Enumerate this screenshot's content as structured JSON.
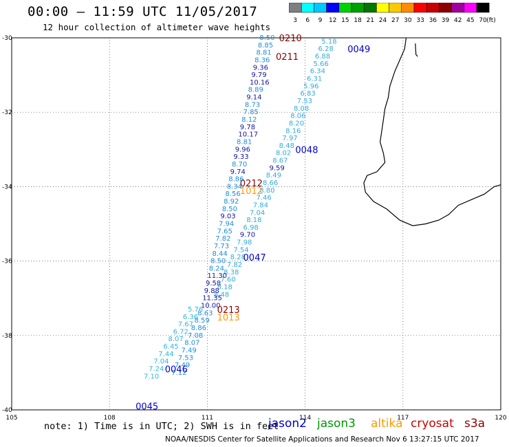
{
  "header": {
    "title": "00:00 – 11:59 UTC 11/05/2017",
    "subtitle": "12 hour collection of altimeter wave heights"
  },
  "color_scale": {
    "bins": [
      {
        "label": "3",
        "color": "#7f7f7f"
      },
      {
        "label": "6",
        "color": "#00ffff"
      },
      {
        "label": "9",
        "color": "#00c8ff"
      },
      {
        "label": "12",
        "color": "#0000ff"
      },
      {
        "label": "15",
        "color": "#00d200"
      },
      {
        "label": "18",
        "color": "#00a000"
      },
      {
        "label": "21",
        "color": "#007800"
      },
      {
        "label": "24",
        "color": "#ffff00"
      },
      {
        "label": "27",
        "color": "#ffc800"
      },
      {
        "label": "30",
        "color": "#ff8c00"
      },
      {
        "label": "33",
        "color": "#ff0000"
      },
      {
        "label": "36",
        "color": "#c80000"
      },
      {
        "label": "39",
        "color": "#8c0000"
      },
      {
        "label": "42",
        "color": "#a000a0"
      },
      {
        "label": "45",
        "color": "#ff00ff"
      },
      {
        "label": "70",
        "color": "#000000"
      }
    ],
    "unit": "(ft)"
  },
  "axes": {
    "lat_labels": [
      "-30",
      "-32",
      "-34",
      "-36",
      "-38",
      "-40"
    ],
    "lon_labels": [
      "105",
      "108",
      "111",
      "114",
      "117",
      "120"
    ]
  },
  "passes": [
    {
      "label": "0210",
      "color": "#8b0000",
      "lon": 113.2,
      "lat": -30.0
    },
    {
      "label": "0211",
      "color": "#8b0000",
      "lon": 113.1,
      "lat": -30.5
    },
    {
      "label": "0049",
      "color": "#0000c8",
      "lon": 115.3,
      "lat": -30.3
    },
    {
      "label": "0048",
      "color": "#0000c8",
      "lon": 113.7,
      "lat": -33.0
    },
    {
      "label": "0212",
      "color": "#8b0000",
      "lon": 112.0,
      "lat": -33.9
    },
    {
      "label": "1012",
      "color": "#ff9900",
      "lon": 112.0,
      "lat": -34.1
    },
    {
      "label": "0047",
      "color": "#0000c8",
      "lon": 112.1,
      "lat": -35.9
    },
    {
      "label": "0213",
      "color": "#8b0000",
      "lon": 111.3,
      "lat": -37.3
    },
    {
      "label": "1013",
      "color": "#ff9900",
      "lon": 111.3,
      "lat": -37.5
    },
    {
      "label": "0046",
      "color": "#0000c8",
      "lon": 109.7,
      "lat": -38.9
    },
    {
      "label": "0045",
      "color": "#0000c8",
      "lon": 108.8,
      "lat": -39.9
    }
  ],
  "tracks": [
    {
      "name": "track-0049",
      "color": "#32aadc",
      "points": [
        {
          "lon": 114.5,
          "lat": -30.1,
          "v": "5.18"
        },
        {
          "lon": 114.4,
          "lat": -30.3,
          "v": "6.28"
        },
        {
          "lon": 114.3,
          "lat": -30.5,
          "v": "6.88"
        },
        {
          "lon": 114.25,
          "lat": -30.7,
          "v": "5.66"
        },
        {
          "lon": 114.15,
          "lat": -30.9,
          "v": "6.34"
        },
        {
          "lon": 114.05,
          "lat": -31.1,
          "v": "6.31"
        },
        {
          "lon": 113.95,
          "lat": -31.3,
          "v": "5.96"
        },
        {
          "lon": 113.85,
          "lat": -31.5,
          "v": "6.83"
        },
        {
          "lon": 113.75,
          "lat": -31.7,
          "v": "7.53"
        },
        {
          "lon": 113.65,
          "lat": -31.9,
          "v": "8.08"
        },
        {
          "lon": 113.55,
          "lat": -32.1,
          "v": "8.06"
        },
        {
          "lon": 113.5,
          "lat": -32.3,
          "v": "8.20"
        },
        {
          "lon": 113.4,
          "lat": -32.5,
          "v": "8.16"
        },
        {
          "lon": 113.3,
          "lat": -32.7,
          "v": "7.97"
        },
        {
          "lon": 113.2,
          "lat": -32.9,
          "v": "8.48"
        },
        {
          "lon": 113.1,
          "lat": -33.1,
          "v": "8.02"
        },
        {
          "lon": 113.0,
          "lat": -33.3,
          "v": "8.67"
        },
        {
          "lon": 112.9,
          "lat": -33.5,
          "v": "9.59"
        },
        {
          "lon": 112.8,
          "lat": -33.7,
          "v": "8.49"
        },
        {
          "lon": 112.7,
          "lat": -33.9,
          "v": "8.66"
        },
        {
          "lon": 112.6,
          "lat": -34.1,
          "v": "8.80"
        },
        {
          "lon": 112.5,
          "lat": -34.3,
          "v": "7.46"
        },
        {
          "lon": 112.4,
          "lat": -34.5,
          "v": "7.84"
        },
        {
          "lon": 112.3,
          "lat": -34.7,
          "v": "7.04"
        },
        {
          "lon": 112.2,
          "lat": -34.9,
          "v": "8.18"
        },
        {
          "lon": 112.1,
          "lat": -35.1,
          "v": "6.98"
        },
        {
          "lon": 112.0,
          "lat": -35.3,
          "v": "9.70"
        },
        {
          "lon": 111.9,
          "lat": -35.5,
          "v": "7.98"
        },
        {
          "lon": 111.8,
          "lat": -35.7,
          "v": "7.54"
        },
        {
          "lon": 111.7,
          "lat": -35.9,
          "v": "8.28"
        },
        {
          "lon": 111.6,
          "lat": -36.1,
          "v": "7.82"
        },
        {
          "lon": 111.5,
          "lat": -36.3,
          "v": "8.38"
        },
        {
          "lon": 111.4,
          "lat": -36.5,
          "v": "7.60"
        },
        {
          "lon": 111.3,
          "lat": -36.7,
          "v": "8.18"
        },
        {
          "lon": 111.2,
          "lat": -36.9,
          "v": "8.48"
        }
      ]
    },
    {
      "name": "track-0211",
      "color": "#1e8cdc",
      "points": [
        {
          "lon": 112.6,
          "lat": -30.0,
          "v": "8.50"
        },
        {
          "lon": 112.55,
          "lat": -30.2,
          "v": "8.85"
        },
        {
          "lon": 112.5,
          "lat": -30.4,
          "v": "8.81"
        },
        {
          "lon": 112.45,
          "lat": -30.6,
          "v": "8.36"
        },
        {
          "lon": 112.4,
          "lat": -30.8,
          "v": "9.36"
        },
        {
          "lon": 112.35,
          "lat": -31.0,
          "v": "9.79"
        },
        {
          "lon": 112.3,
          "lat": -31.2,
          "v": "10.16"
        },
        {
          "lon": 112.25,
          "lat": -31.4,
          "v": "8.89"
        },
        {
          "lon": 112.2,
          "lat": -31.6,
          "v": "9.14"
        },
        {
          "lon": 112.15,
          "lat": -31.8,
          "v": "8.73"
        },
        {
          "lon": 112.1,
          "lat": -32.0,
          "v": "7.85"
        },
        {
          "lon": 112.05,
          "lat": -32.2,
          "v": "8.12"
        },
        {
          "lon": 112.0,
          "lat": -32.4,
          "v": "9.78"
        },
        {
          "lon": 111.95,
          "lat": -32.6,
          "v": "10.17"
        },
        {
          "lon": 111.9,
          "lat": -32.8,
          "v": "8.81"
        },
        {
          "lon": 111.85,
          "lat": -33.0,
          "v": "9.96"
        },
        {
          "lon": 111.8,
          "lat": -33.2,
          "v": "9.33"
        },
        {
          "lon": 111.75,
          "lat": -33.4,
          "v": "8.70"
        },
        {
          "lon": 111.7,
          "lat": -33.6,
          "v": "9.74"
        },
        {
          "lon": 111.65,
          "lat": -33.8,
          "v": "8.86"
        },
        {
          "lon": 111.6,
          "lat": -34.0,
          "v": "8.34"
        },
        {
          "lon": 111.55,
          "lat": -34.2,
          "v": "8.56"
        },
        {
          "lon": 111.5,
          "lat": -34.4,
          "v": "8.92"
        },
        {
          "lon": 111.45,
          "lat": -34.6,
          "v": "8.50"
        },
        {
          "lon": 111.4,
          "lat": -34.8,
          "v": "9.03"
        },
        {
          "lon": 111.35,
          "lat": -35.0,
          "v": "7.94"
        },
        {
          "lon": 111.3,
          "lat": -35.2,
          "v": "7.65"
        },
        {
          "lon": 111.25,
          "lat": -35.4,
          "v": "7.82"
        },
        {
          "lon": 111.2,
          "lat": -35.6,
          "v": "7.73"
        },
        {
          "lon": 111.15,
          "lat": -35.8,
          "v": "8.44"
        },
        {
          "lon": 111.1,
          "lat": -36.0,
          "v": "8.50"
        },
        {
          "lon": 111.05,
          "lat": -36.2,
          "v": "8.24"
        },
        {
          "lon": 111.0,
          "lat": -36.4,
          "v": "11.30"
        },
        {
          "lon": 110.95,
          "lat": -36.6,
          "v": "9.58"
        },
        {
          "lon": 110.9,
          "lat": -36.8,
          "v": "9.88"
        },
        {
          "lon": 110.85,
          "lat": -37.0,
          "v": "11.35"
        },
        {
          "lon": 110.8,
          "lat": -37.2,
          "v": "10.00"
        },
        {
          "lon": 110.7,
          "lat": -37.4,
          "v": "8.63"
        },
        {
          "lon": 110.6,
          "lat": -37.6,
          "v": "8.59"
        },
        {
          "lon": 110.5,
          "lat": -37.8,
          "v": "8.86"
        },
        {
          "lon": 110.4,
          "lat": -38.0,
          "v": "7.08"
        },
        {
          "lon": 110.3,
          "lat": -38.2,
          "v": "8.07"
        },
        {
          "lon": 110.2,
          "lat": -38.4,
          "v": "7.49"
        },
        {
          "lon": 110.1,
          "lat": -38.6,
          "v": "7.53"
        },
        {
          "lon": 110.0,
          "lat": -38.8,
          "v": "7.49"
        },
        {
          "lon": 109.9,
          "lat": -39.0,
          "v": "7.12"
        }
      ]
    },
    {
      "name": "track-0046",
      "color": "#32b4dc",
      "points": [
        {
          "lon": 110.4,
          "lat": -37.3,
          "v": "5.76"
        },
        {
          "lon": 110.25,
          "lat": -37.5,
          "v": "6.36"
        },
        {
          "lon": 110.1,
          "lat": -37.7,
          "v": "7.67"
        },
        {
          "lon": 109.95,
          "lat": -37.9,
          "v": "6.72"
        },
        {
          "lon": 109.8,
          "lat": -38.1,
          "v": "8.07"
        },
        {
          "lon": 109.65,
          "lat": -38.3,
          "v": "6.45"
        },
        {
          "lon": 109.5,
          "lat": -38.5,
          "v": "7.44"
        },
        {
          "lon": 109.35,
          "lat": -38.7,
          "v": "7.04"
        },
        {
          "lon": 109.2,
          "lat": -38.9,
          "v": "7.24"
        },
        {
          "lon": 109.05,
          "lat": -39.1,
          "v": "7.10"
        }
      ]
    }
  ],
  "legend": {
    "note": "note: 1) Time is in UTC; 2) SWH is in feet",
    "credit": "NOAA/NESDIS Center for Satellite Applications and Research    Nov  6 13:27:15 UTC 2017",
    "satellites": [
      {
        "name": "jason2",
        "color": "#0000c8"
      },
      {
        "name": "jason3",
        "color": "#009600"
      },
      {
        "name": "altika",
        "color": "#ff9900"
      },
      {
        "name": "cryosat",
        "color": "#c80000"
      },
      {
        "name": "s3a",
        "color": "#8b0000"
      }
    ]
  }
}
